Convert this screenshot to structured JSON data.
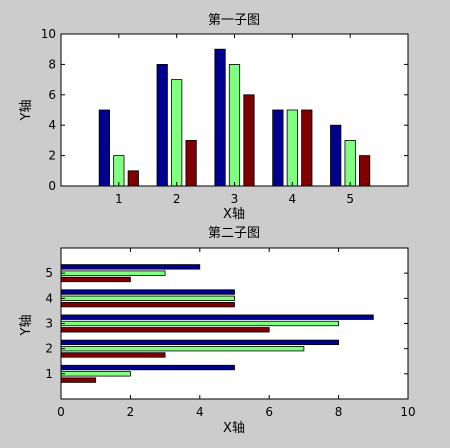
{
  "figure": {
    "background": "#cccccc"
  },
  "chart_data": [
    {
      "type": "bar",
      "orientation": "vertical",
      "title": "第一子图",
      "xlabel": "X轴",
      "ylabel": "Y轴",
      "categories": [
        "1",
        "2",
        "3",
        "4",
        "5"
      ],
      "xlim": [
        0,
        6
      ],
      "ylim": [
        0,
        10
      ],
      "x_ticks": [
        "1",
        "2",
        "3",
        "4",
        "5"
      ],
      "y_ticks": [
        "0",
        "2",
        "4",
        "6",
        "8",
        "10"
      ],
      "grid": false,
      "series": [
        {
          "values": [
            5,
            8,
            9,
            5,
            4
          ],
          "color": "#00008f"
        },
        {
          "values": [
            2,
            7,
            8,
            5,
            3
          ],
          "color": "#80ff80"
        },
        {
          "values": [
            1,
            3,
            6,
            5,
            2
          ],
          "color": "#800000"
        }
      ]
    },
    {
      "type": "bar",
      "orientation": "horizontal",
      "title": "第二子图",
      "xlabel": "X轴",
      "ylabel": "Y轴",
      "categories": [
        "1",
        "2",
        "3",
        "4",
        "5"
      ],
      "xlim": [
        0,
        10
      ],
      "ylim": [
        0,
        6
      ],
      "x_ticks": [
        "0",
        "2",
        "4",
        "6",
        "8",
        "10"
      ],
      "y_ticks": [
        "1",
        "2",
        "3",
        "4",
        "5"
      ],
      "grid": false,
      "series": [
        {
          "values": [
            5,
            8,
            9,
            5,
            4
          ],
          "color": "#00008f"
        },
        {
          "values": [
            2,
            7,
            8,
            5,
            3
          ],
          "color": "#80ff80"
        },
        {
          "values": [
            1,
            3,
            6,
            5,
            2
          ],
          "color": "#800000"
        }
      ]
    }
  ]
}
